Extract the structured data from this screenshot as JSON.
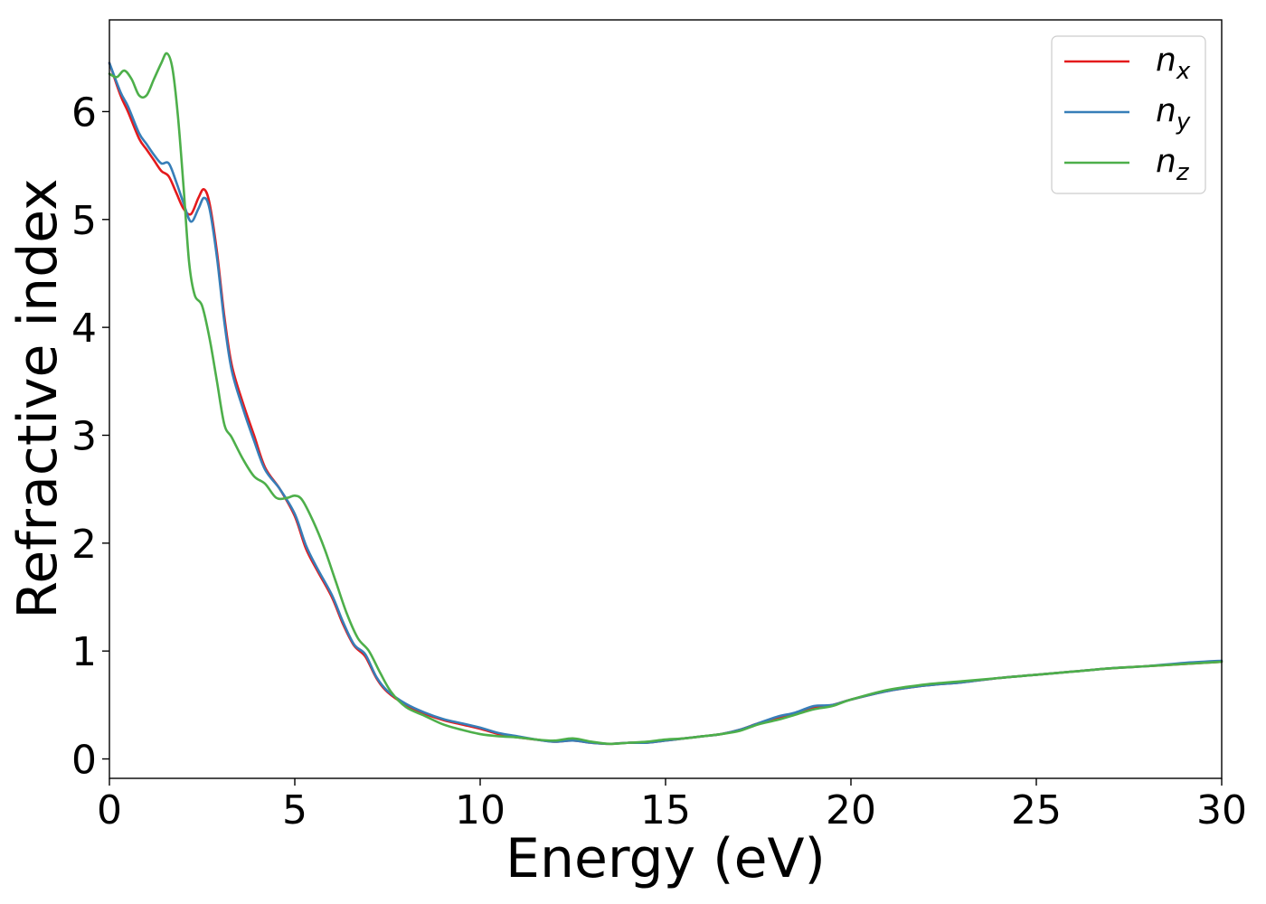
{
  "chart_data": {
    "type": "line",
    "title": "",
    "xlabel": "Energy (eV)",
    "ylabel": "Refractive index",
    "xlim": [
      0,
      30
    ],
    "ylim": [
      -0.18,
      6.85
    ],
    "xticks": [
      0,
      5,
      10,
      15,
      20,
      25,
      30
    ],
    "yticks": [
      0,
      1,
      2,
      3,
      4,
      5,
      6
    ],
    "grid": false,
    "legend_position": "top-right",
    "series": [
      {
        "name": "n_x",
        "label_base": "n",
        "label_sub": "x",
        "color": "#e41a1c",
        "x": [
          0,
          0.3,
          0.5,
          0.8,
          1.0,
          1.2,
          1.4,
          1.6,
          1.8,
          2.0,
          2.2,
          2.4,
          2.55,
          2.7,
          2.9,
          3.1,
          3.3,
          3.6,
          3.9,
          4.2,
          4.6,
          5.0,
          5.3,
          5.6,
          6.0,
          6.3,
          6.6,
          6.9,
          7.2,
          7.5,
          8.0,
          8.5,
          9.0,
          9.5,
          10.0,
          10.5,
          11.0,
          11.5,
          12.0,
          12.5,
          13.0,
          13.5,
          14.0,
          14.5,
          15.0,
          15.5,
          16.0,
          16.5,
          17.0,
          17.5,
          18.0,
          18.5,
          19.0,
          19.5,
          20.0,
          21.0,
          22.0,
          23.0,
          24.0,
          25.0,
          26.0,
          27.0,
          28.0,
          29.0,
          30.0
        ],
        "y": [
          6.45,
          6.15,
          6.0,
          5.75,
          5.65,
          5.55,
          5.45,
          5.4,
          5.25,
          5.1,
          5.05,
          5.2,
          5.28,
          5.15,
          4.7,
          4.1,
          3.65,
          3.3,
          3.0,
          2.7,
          2.5,
          2.25,
          1.95,
          1.75,
          1.5,
          1.25,
          1.05,
          0.95,
          0.75,
          0.62,
          0.5,
          0.42,
          0.36,
          0.32,
          0.28,
          0.23,
          0.2,
          0.18,
          0.16,
          0.17,
          0.15,
          0.14,
          0.15,
          0.15,
          0.17,
          0.19,
          0.21,
          0.23,
          0.27,
          0.33,
          0.38,
          0.42,
          0.48,
          0.5,
          0.55,
          0.63,
          0.68,
          0.71,
          0.75,
          0.78,
          0.81,
          0.84,
          0.86,
          0.88,
          0.9
        ]
      },
      {
        "name": "n_y",
        "label_base": "n",
        "label_sub": "y",
        "color": "#377eb8",
        "x": [
          0,
          0.3,
          0.5,
          0.8,
          1.0,
          1.2,
          1.4,
          1.6,
          1.8,
          2.0,
          2.2,
          2.4,
          2.55,
          2.7,
          2.9,
          3.1,
          3.3,
          3.6,
          3.9,
          4.2,
          4.6,
          5.0,
          5.3,
          5.6,
          6.0,
          6.3,
          6.6,
          6.9,
          7.2,
          7.5,
          8.0,
          8.5,
          9.0,
          9.5,
          10.0,
          10.5,
          11.0,
          11.5,
          12.0,
          12.5,
          13.0,
          13.5,
          14.0,
          14.5,
          15.0,
          15.5,
          16.0,
          16.5,
          17.0,
          17.5,
          18.0,
          18.5,
          19.0,
          19.5,
          20.0,
          21.0,
          22.0,
          23.0,
          24.0,
          25.0,
          26.0,
          27.0,
          28.0,
          29.0,
          30.0
        ],
        "y": [
          6.45,
          6.18,
          6.05,
          5.8,
          5.7,
          5.6,
          5.52,
          5.52,
          5.35,
          5.15,
          4.98,
          5.1,
          5.2,
          5.1,
          4.65,
          4.05,
          3.6,
          3.25,
          2.95,
          2.68,
          2.5,
          2.27,
          1.98,
          1.77,
          1.52,
          1.27,
          1.06,
          0.97,
          0.76,
          0.63,
          0.51,
          0.43,
          0.37,
          0.33,
          0.29,
          0.24,
          0.21,
          0.18,
          0.16,
          0.17,
          0.15,
          0.14,
          0.15,
          0.15,
          0.17,
          0.19,
          0.21,
          0.23,
          0.27,
          0.33,
          0.39,
          0.43,
          0.49,
          0.5,
          0.55,
          0.63,
          0.68,
          0.71,
          0.75,
          0.78,
          0.81,
          0.84,
          0.86,
          0.89,
          0.91
        ]
      },
      {
        "name": "n_z",
        "label_base": "n",
        "label_sub": "z",
        "color": "#4daf4a",
        "x": [
          0,
          0.2,
          0.4,
          0.6,
          0.8,
          1.0,
          1.2,
          1.4,
          1.55,
          1.7,
          1.85,
          2.0,
          2.15,
          2.3,
          2.5,
          2.7,
          2.9,
          3.1,
          3.3,
          3.6,
          3.9,
          4.2,
          4.5,
          4.8,
          5.0,
          5.2,
          5.5,
          5.8,
          6.1,
          6.4,
          6.7,
          7.0,
          7.3,
          7.6,
          8.0,
          8.5,
          9.0,
          9.5,
          10.0,
          10.5,
          11.0,
          11.5,
          12.0,
          12.5,
          13.0,
          13.5,
          14.0,
          14.5,
          15.0,
          15.5,
          16.0,
          16.5,
          17.0,
          17.5,
          18.0,
          18.5,
          19.0,
          19.5,
          20.0,
          21.0,
          22.0,
          23.0,
          24.0,
          25.0,
          26.0,
          27.0,
          28.0,
          29.0,
          30.0
        ],
        "y": [
          6.35,
          6.32,
          6.38,
          6.3,
          6.15,
          6.15,
          6.3,
          6.45,
          6.54,
          6.4,
          5.95,
          5.3,
          4.6,
          4.3,
          4.2,
          3.9,
          3.5,
          3.1,
          2.98,
          2.78,
          2.62,
          2.55,
          2.42,
          2.42,
          2.44,
          2.4,
          2.2,
          1.95,
          1.65,
          1.35,
          1.12,
          1.0,
          0.8,
          0.62,
          0.48,
          0.4,
          0.32,
          0.27,
          0.23,
          0.21,
          0.2,
          0.18,
          0.17,
          0.19,
          0.16,
          0.14,
          0.15,
          0.16,
          0.18,
          0.19,
          0.21,
          0.23,
          0.26,
          0.32,
          0.36,
          0.41,
          0.46,
          0.49,
          0.55,
          0.64,
          0.69,
          0.72,
          0.75,
          0.78,
          0.81,
          0.84,
          0.86,
          0.88,
          0.9
        ]
      }
    ]
  }
}
